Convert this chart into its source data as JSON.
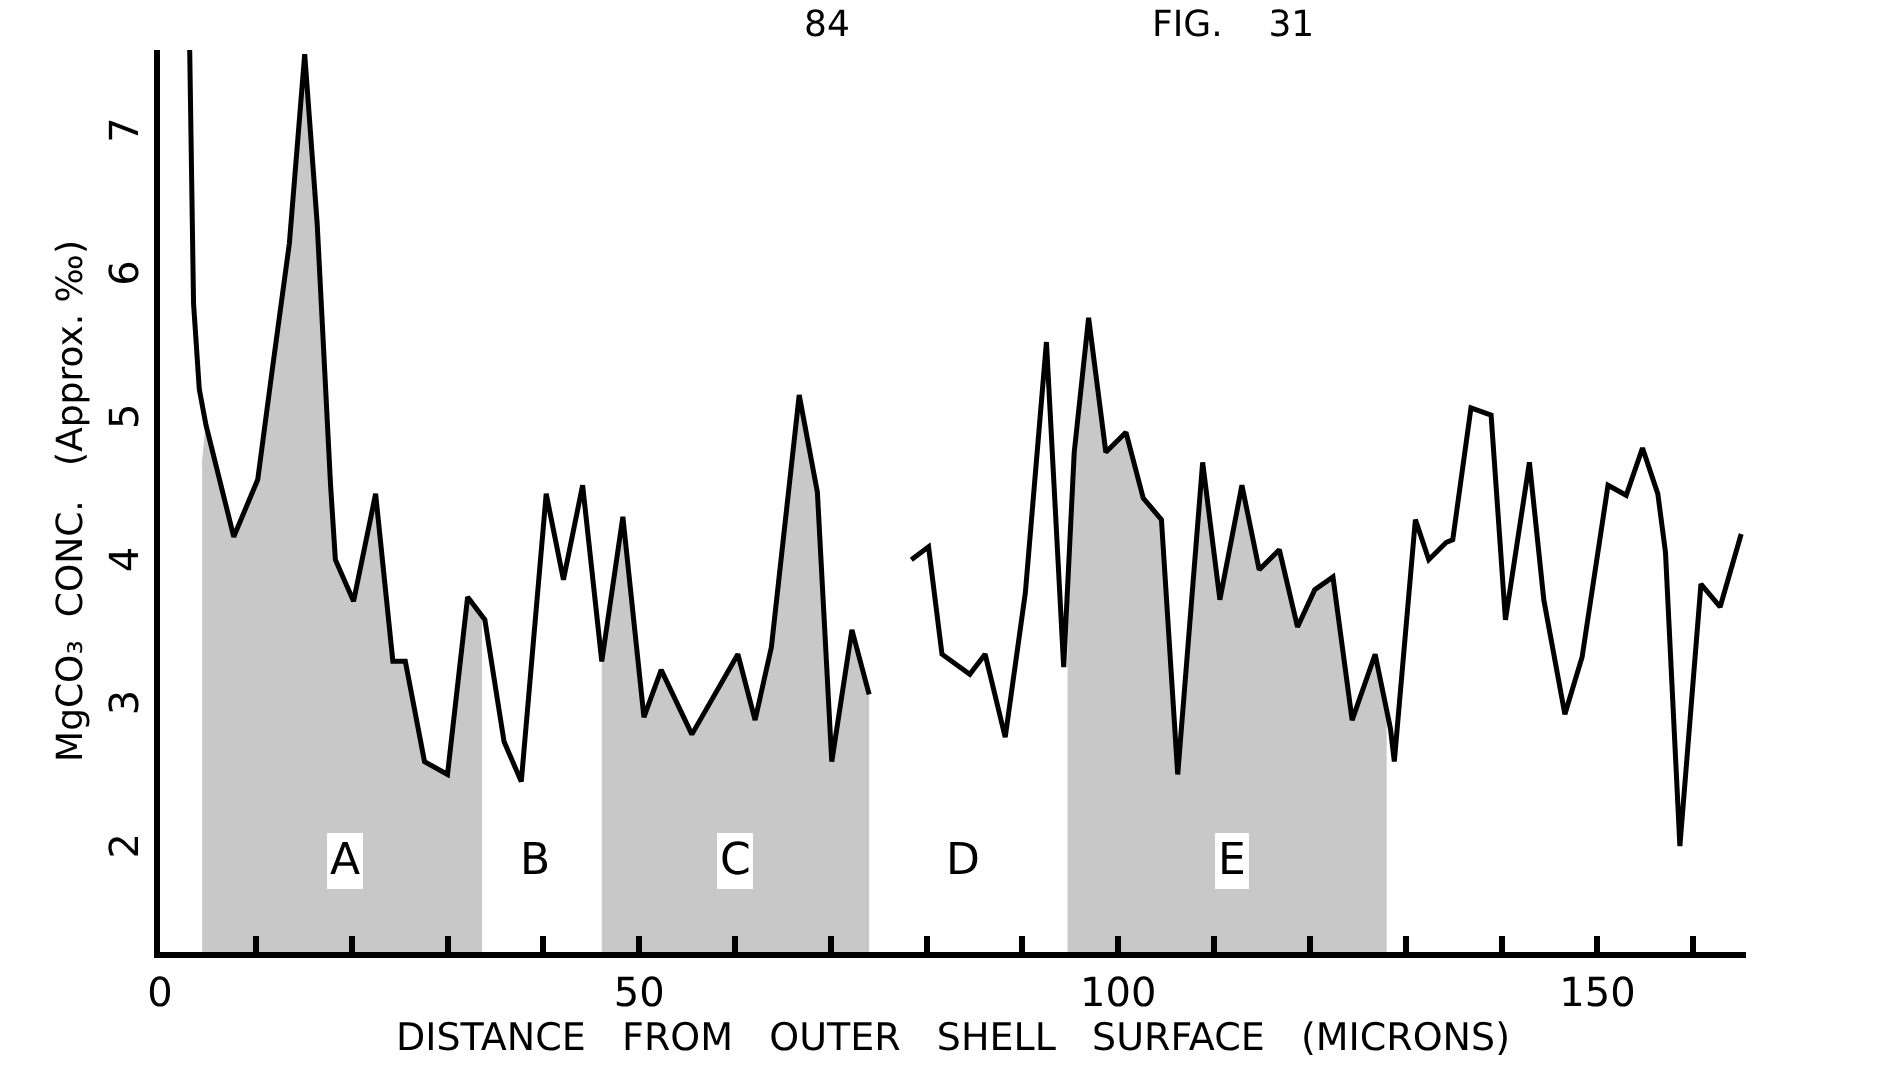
{
  "chart_data": {
    "type": "line",
    "xlabel": "DISTANCE   FROM   OUTER   SHELL   SURFACE   (MICRONS)",
    "ylabel": "MgCO₃  CONC.   (Approx. ‰)",
    "xlim": [
      0,
      165.5
    ],
    "ylim": [
      1.3,
      7.6
    ],
    "xticks": [
      0,
      {
        "value": 10,
        "label": null
      },
      {
        "value": 20,
        "label": null
      },
      {
        "value": 30,
        "label": null
      },
      {
        "value": 40,
        "label": null
      },
      50,
      {
        "value": 60,
        "label": null
      },
      {
        "value": 70,
        "label": null
      },
      {
        "value": 80,
        "label": null
      },
      {
        "value": 90,
        "label": null
      },
      100,
      {
        "value": 110,
        "label": null
      },
      {
        "value": 120,
        "label": null
      },
      {
        "value": 130,
        "label": null
      },
      {
        "value": 140,
        "label": null
      },
      150,
      {
        "value": 160,
        "label": null
      }
    ],
    "yticks": [
      2,
      3,
      4,
      5,
      6,
      7
    ],
    "marker": "none",
    "line_style": "solid",
    "series": [
      {
        "color": "#000000",
        "x": [
          3.1,
          3.5,
          4.1,
          4.8,
          7.7,
          10.2,
          11.7,
          13.5,
          15.1,
          16.4,
          17.8,
          18.3,
          20.2,
          22.5,
          24.3,
          25.6,
          27.6,
          30.0,
          32.1,
          33.9,
          35.9,
          37.7,
          40.3,
          42.1,
          44.1,
          46.1,
          48.3,
          50.5,
          52.3,
          55.5,
          60.3,
          62.1,
          63.8,
          66.7,
          68.6,
          70.1,
          72.2,
          74.0,
          76.0,
          78.4,
          80.2,
          81.6,
          84.5,
          86.1,
          88.2,
          90.3,
          92.5,
          94.3,
          95.4,
          96.9,
          98.7,
          100.8,
          102.6,
          104.5,
          106.2,
          108.8,
          110.6,
          112.9,
          114.7,
          116.8,
          118.7,
          120.5,
          122.4,
          124.4,
          126.8,
          128.4,
          128.8,
          131.0,
          132.4,
          134.2,
          134.9,
          136.8,
          138.9,
          140.4,
          142.9,
          144.4,
          146.6,
          148.4,
          151.1,
          153.0,
          154.7,
          156.3,
          157.1,
          158.6,
          160.8,
          162.8,
          165.0
        ],
        "values": [
          7.6,
          5.83,
          5.23,
          4.98,
          4.2,
          4.6,
          5.36,
          6.25,
          7.57,
          6.39,
          4.56,
          4.04,
          3.75,
          4.5,
          3.33,
          3.33,
          2.63,
          2.54,
          3.78,
          3.62,
          2.77,
          2.49,
          4.5,
          3.9,
          4.56,
          3.33,
          4.34,
          2.94,
          3.27,
          2.82,
          3.38,
          2.92,
          3.43,
          5.19,
          4.51,
          2.63,
          3.55,
          3.1,
          null,
          4.04,
          4.13,
          3.38,
          3.24,
          3.38,
          2.8,
          3.81,
          5.56,
          3.29,
          4.79,
          5.73,
          4.79,
          4.93,
          4.47,
          4.32,
          2.54,
          4.72,
          3.76,
          4.56,
          3.97,
          4.11,
          3.57,
          3.83,
          3.92,
          2.92,
          3.38,
          2.86,
          2.63,
          4.32,
          4.04,
          4.16,
          4.18,
          5.1,
          5.05,
          3.62,
          4.72,
          3.76,
          2.96,
          3.36,
          4.56,
          4.49,
          4.82,
          4.5,
          4.09,
          2.04,
          3.87,
          3.71,
          4.22
        ]
      },
      {
        "type": "area",
        "color": "#c8c8c8",
        "x": [
          4.4,
          4.8,
          7.7,
          10.2,
          11.7,
          13.5,
          15.1,
          16.4,
          17.8,
          18.3,
          20.2,
          22.5,
          24.3,
          25.6,
          27.6,
          30.0,
          32.1,
          33.6
        ],
        "values": [
          4.7,
          4.98,
          4.2,
          4.6,
          5.36,
          6.25,
          7.57,
          6.39,
          4.56,
          4.04,
          3.75,
          4.5,
          3.33,
          3.33,
          2.63,
          2.54,
          3.78,
          3.62
        ]
      },
      {
        "type": "area",
        "color": "#c8c8c8",
        "x": [
          46.1,
          48.3,
          50.5,
          52.3,
          55.5,
          60.3,
          62.1,
          63.8,
          66.7,
          68.6,
          70.1,
          72.2,
          74.0
        ],
        "values": [
          3.33,
          4.34,
          2.94,
          3.27,
          2.82,
          3.38,
          2.92,
          3.43,
          5.19,
          4.51,
          2.63,
          3.55,
          3.1
        ]
      },
      {
        "type": "area",
        "color": "#c8c8c8",
        "x": [
          94.7,
          95.4,
          96.9,
          98.7,
          100.8,
          102.6,
          104.5,
          106.2,
          108.8,
          110.6,
          112.9,
          114.7,
          116.8,
          118.7,
          120.5,
          122.4,
          124.4,
          126.8,
          128.0
        ],
        "values": [
          3.29,
          4.79,
          5.73,
          4.79,
          4.93,
          4.47,
          4.32,
          2.54,
          4.72,
          3.76,
          4.56,
          3.97,
          4.11,
          3.57,
          3.83,
          3.92,
          2.92,
          3.38,
          3.0
        ]
      }
    ],
    "annotations": [
      "84",
      "FIG.    31",
      {
        "text": "A",
        "x": 19.3,
        "y": 1.93
      },
      {
        "text": "B",
        "x": 39.2,
        "y": 1.93
      },
      {
        "text": "C",
        "x": 59.9,
        "y": 1.93
      },
      {
        "text": "D",
        "x": 83.8,
        "y": 1.93
      },
      {
        "text": "E",
        "x": 111.8,
        "y": 1.93
      }
    ]
  }
}
